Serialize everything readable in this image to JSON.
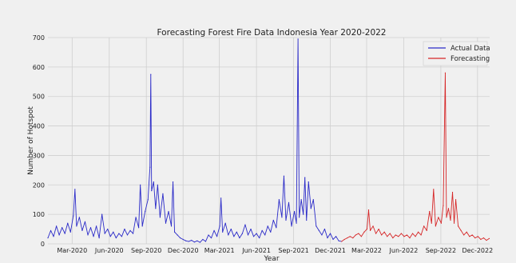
{
  "chart_data": {
    "type": "line",
    "title": "Forecasting Forest Fire Data Indonesia Year 2020-2022",
    "xlabel": "Year",
    "ylabel": "Number of Hotspot",
    "ylim": [
      0,
      700
    ],
    "yticks": [
      0,
      100,
      200,
      300,
      400,
      500,
      600,
      700
    ],
    "xlim": [
      "2020-01-01",
      "2022-12-31"
    ],
    "xticks": [
      {
        "date": "2020-03-01",
        "label": "Mar-2020"
      },
      {
        "date": "2020-06-01",
        "label": "Jun-2020"
      },
      {
        "date": "2020-09-01",
        "label": "Sep-2020"
      },
      {
        "date": "2020-12-01",
        "label": "Dec-2020"
      },
      {
        "date": "2021-03-01",
        "label": "Mar-2021"
      },
      {
        "date": "2021-06-01",
        "label": "Jun-2021"
      },
      {
        "date": "2021-09-01",
        "label": "Sep-2021"
      },
      {
        "date": "2021-12-01",
        "label": "Dec-2021"
      },
      {
        "date": "2022-03-01",
        "label": "Mar-2022"
      },
      {
        "date": "2022-06-01",
        "label": "Jun-2022"
      },
      {
        "date": "2022-09-01",
        "label": "Sep-2022"
      },
      {
        "date": "2022-12-01",
        "label": "Dec-2022"
      }
    ],
    "grid": true,
    "legend_position": "top-right",
    "series": [
      {
        "name": "Actual Data",
        "color": "#2a2ac8",
        "points": [
          [
            "2020-01-01",
            20
          ],
          [
            "2020-01-08",
            45
          ],
          [
            "2020-01-15",
            25
          ],
          [
            "2020-01-22",
            60
          ],
          [
            "2020-01-29",
            30
          ],
          [
            "2020-02-05",
            55
          ],
          [
            "2020-02-12",
            35
          ],
          [
            "2020-02-19",
            70
          ],
          [
            "2020-02-26",
            40
          ],
          [
            "2020-03-04",
            95
          ],
          [
            "2020-03-08",
            185
          ],
          [
            "2020-03-12",
            60
          ],
          [
            "2020-03-19",
            90
          ],
          [
            "2020-03-26",
            45
          ],
          [
            "2020-04-02",
            75
          ],
          [
            "2020-04-09",
            30
          ],
          [
            "2020-04-16",
            55
          ],
          [
            "2020-04-23",
            25
          ],
          [
            "2020-04-30",
            60
          ],
          [
            "2020-05-07",
            20
          ],
          [
            "2020-05-14",
            100
          ],
          [
            "2020-05-21",
            35
          ],
          [
            "2020-05-28",
            50
          ],
          [
            "2020-06-04",
            25
          ],
          [
            "2020-06-11",
            40
          ],
          [
            "2020-06-18",
            20
          ],
          [
            "2020-06-25",
            35
          ],
          [
            "2020-07-02",
            25
          ],
          [
            "2020-07-09",
            50
          ],
          [
            "2020-07-16",
            30
          ],
          [
            "2020-07-23",
            45
          ],
          [
            "2020-07-30",
            35
          ],
          [
            "2020-08-06",
            90
          ],
          [
            "2020-08-13",
            55
          ],
          [
            "2020-08-17",
            200
          ],
          [
            "2020-08-22",
            60
          ],
          [
            "2020-08-29",
            110
          ],
          [
            "2020-09-05",
            150
          ],
          [
            "2020-09-10",
            260
          ],
          [
            "2020-09-12",
            575
          ],
          [
            "2020-09-14",
            180
          ],
          [
            "2020-09-19",
            210
          ],
          [
            "2020-09-24",
            120
          ],
          [
            "2020-09-29",
            200
          ],
          [
            "2020-10-05",
            90
          ],
          [
            "2020-10-12",
            170
          ],
          [
            "2020-10-19",
            70
          ],
          [
            "2020-10-26",
            110
          ],
          [
            "2020-11-02",
            60
          ],
          [
            "2020-11-06",
            210
          ],
          [
            "2020-11-10",
            40
          ],
          [
            "2020-11-17",
            30
          ],
          [
            "2020-11-24",
            20
          ],
          [
            "2020-12-01",
            15
          ],
          [
            "2020-12-08",
            10
          ],
          [
            "2020-12-15",
            8
          ],
          [
            "2020-12-22",
            12
          ],
          [
            "2020-12-29",
            6
          ],
          [
            "2021-01-05",
            10
          ],
          [
            "2021-01-12",
            5
          ],
          [
            "2021-01-19",
            15
          ],
          [
            "2021-01-26",
            8
          ],
          [
            "2021-02-02",
            30
          ],
          [
            "2021-02-09",
            20
          ],
          [
            "2021-02-16",
            45
          ],
          [
            "2021-02-23",
            25
          ],
          [
            "2021-03-02",
            60
          ],
          [
            "2021-03-05",
            155
          ],
          [
            "2021-03-09",
            40
          ],
          [
            "2021-03-16",
            70
          ],
          [
            "2021-03-23",
            30
          ],
          [
            "2021-03-30",
            50
          ],
          [
            "2021-04-06",
            25
          ],
          [
            "2021-04-13",
            40
          ],
          [
            "2021-04-20",
            20
          ],
          [
            "2021-04-27",
            35
          ],
          [
            "2021-05-04",
            65
          ],
          [
            "2021-05-11",
            30
          ],
          [
            "2021-05-18",
            50
          ],
          [
            "2021-05-25",
            25
          ],
          [
            "2021-06-01",
            35
          ],
          [
            "2021-06-08",
            20
          ],
          [
            "2021-06-15",
            45
          ],
          [
            "2021-06-22",
            30
          ],
          [
            "2021-06-29",
            60
          ],
          [
            "2021-07-06",
            40
          ],
          [
            "2021-07-13",
            80
          ],
          [
            "2021-07-20",
            55
          ],
          [
            "2021-07-27",
            150
          ],
          [
            "2021-08-03",
            90
          ],
          [
            "2021-08-08",
            230
          ],
          [
            "2021-08-13",
            80
          ],
          [
            "2021-08-20",
            140
          ],
          [
            "2021-08-27",
            60
          ],
          [
            "2021-09-03",
            110
          ],
          [
            "2021-09-08",
            70
          ],
          [
            "2021-09-12",
            695
          ],
          [
            "2021-09-15",
            90
          ],
          [
            "2021-09-20",
            150
          ],
          [
            "2021-09-25",
            100
          ],
          [
            "2021-09-29",
            225
          ],
          [
            "2021-10-03",
            80
          ],
          [
            "2021-10-08",
            210
          ],
          [
            "2021-10-14",
            120
          ],
          [
            "2021-10-20",
            150
          ],
          [
            "2021-10-27",
            60
          ],
          [
            "2021-11-03",
            45
          ],
          [
            "2021-11-10",
            30
          ],
          [
            "2021-11-17",
            50
          ],
          [
            "2021-11-24",
            20
          ],
          [
            "2021-12-01",
            35
          ],
          [
            "2021-12-08",
            15
          ],
          [
            "2021-12-15",
            25
          ],
          [
            "2021-12-22",
            10
          ],
          [
            "2021-12-29",
            8
          ]
        ]
      },
      {
        "name": "Forecasting",
        "color": "#d62728",
        "points": [
          [
            "2021-12-29",
            8
          ],
          [
            "2022-01-05",
            15
          ],
          [
            "2022-01-12",
            20
          ],
          [
            "2022-01-19",
            25
          ],
          [
            "2022-01-26",
            20
          ],
          [
            "2022-02-02",
            30
          ],
          [
            "2022-02-09",
            35
          ],
          [
            "2022-02-16",
            25
          ],
          [
            "2022-02-23",
            40
          ],
          [
            "2022-03-02",
            50
          ],
          [
            "2022-03-06",
            115
          ],
          [
            "2022-03-10",
            45
          ],
          [
            "2022-03-17",
            60
          ],
          [
            "2022-03-24",
            35
          ],
          [
            "2022-03-31",
            50
          ],
          [
            "2022-04-07",
            30
          ],
          [
            "2022-04-14",
            40
          ],
          [
            "2022-04-21",
            25
          ],
          [
            "2022-04-28",
            35
          ],
          [
            "2022-05-05",
            20
          ],
          [
            "2022-05-12",
            30
          ],
          [
            "2022-05-19",
            25
          ],
          [
            "2022-05-26",
            35
          ],
          [
            "2022-06-02",
            25
          ],
          [
            "2022-06-09",
            30
          ],
          [
            "2022-06-16",
            20
          ],
          [
            "2022-06-23",
            35
          ],
          [
            "2022-06-30",
            25
          ],
          [
            "2022-07-07",
            40
          ],
          [
            "2022-07-14",
            30
          ],
          [
            "2022-07-21",
            60
          ],
          [
            "2022-07-28",
            45
          ],
          [
            "2022-08-04",
            110
          ],
          [
            "2022-08-09",
            70
          ],
          [
            "2022-08-14",
            185
          ],
          [
            "2022-08-19",
            60
          ],
          [
            "2022-08-26",
            90
          ],
          [
            "2022-09-02",
            70
          ],
          [
            "2022-09-07",
            130
          ],
          [
            "2022-09-12",
            580
          ],
          [
            "2022-09-15",
            90
          ],
          [
            "2022-09-20",
            120
          ],
          [
            "2022-09-25",
            80
          ],
          [
            "2022-09-30",
            175
          ],
          [
            "2022-10-04",
            70
          ],
          [
            "2022-10-08",
            150
          ],
          [
            "2022-10-14",
            60
          ],
          [
            "2022-10-21",
            45
          ],
          [
            "2022-10-28",
            30
          ],
          [
            "2022-11-04",
            40
          ],
          [
            "2022-11-11",
            25
          ],
          [
            "2022-11-18",
            30
          ],
          [
            "2022-11-25",
            20
          ],
          [
            "2022-12-02",
            25
          ],
          [
            "2022-12-09",
            15
          ],
          [
            "2022-12-16",
            20
          ],
          [
            "2022-12-23",
            12
          ],
          [
            "2022-12-30",
            18
          ]
        ]
      }
    ]
  }
}
